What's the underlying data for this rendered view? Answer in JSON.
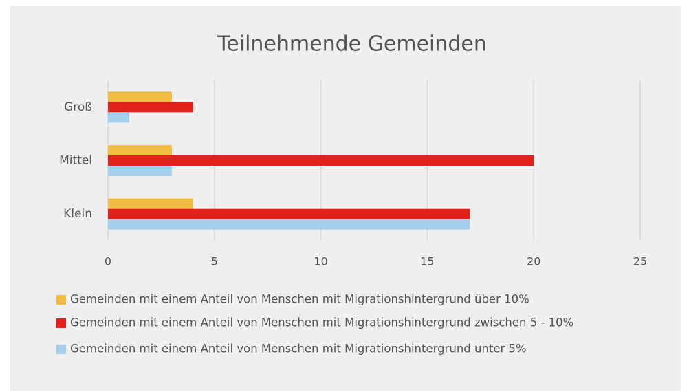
{
  "chart_data": {
    "type": "hbar",
    "title": "Teilnehmende Gemeinden",
    "categories": [
      "Groß",
      "Mittel",
      "Klein"
    ],
    "series": [
      {
        "name": "Gemeinden mit einem Anteil von Menschen mit Migrationshintergrund über 10%",
        "color": "#f0bc42",
        "values": [
          3,
          3,
          4
        ]
      },
      {
        "name": "Gemeinden mit einem Anteil von Menschen mit Migrationshintergrund zwischen 5 - 10%",
        "color": "#e2201c",
        "values": [
          4,
          20,
          17
        ]
      },
      {
        "name": "Gemeinden mit einem Anteil von Menschen mit Migrationshintergrund unter 5%",
        "color": "#a6cfee",
        "values": [
          1,
          3,
          17
        ]
      }
    ],
    "xlim": [
      0,
      25
    ],
    "xticks": [
      0,
      5,
      10,
      15,
      20,
      25
    ],
    "grid": true
  }
}
